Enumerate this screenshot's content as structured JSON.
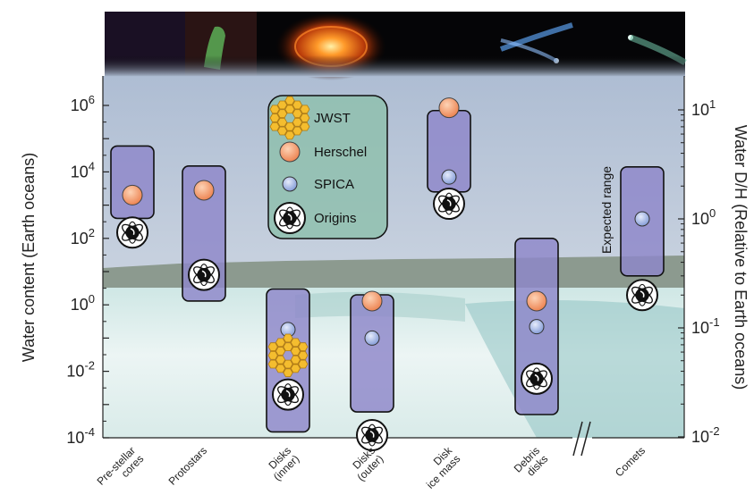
{
  "chart_data": {
    "type": "scatter",
    "y_left": {
      "label": "Water content (Earth oceans)",
      "scale": "log",
      "range": [
        0.0001,
        1000000
      ],
      "ticks": [
        {
          "v": 0.0001,
          "b": "10",
          "e": "-4"
        },
        {
          "v": 0.01,
          "b": "10",
          "e": "-2"
        },
        {
          "v": 1,
          "b": "10",
          "e": "0"
        },
        {
          "v": 100,
          "b": "10",
          "e": "2"
        },
        {
          "v": 10000,
          "b": "10",
          "e": "4"
        },
        {
          "v": 1000000,
          "b": "10",
          "e": "6"
        }
      ]
    },
    "y_right": {
      "label": "Water D/H (Relative to Earth oceans)",
      "scale": "log",
      "range": [
        0.01,
        10
      ],
      "ticks": [
        {
          "v": 0.01,
          "b": "10",
          "e": "-2"
        },
        {
          "v": 0.1,
          "b": "10",
          "e": "-1"
        },
        {
          "v": 1,
          "b": "10",
          "e": "0"
        },
        {
          "v": 10,
          "b": "10",
          "e": "1"
        }
      ]
    },
    "categories": [
      {
        "name": "pre-stellar-cores",
        "lines": [
          "Pre-stellar",
          "cores"
        ],
        "axis": "left",
        "range": [
          400,
          60000
        ],
        "markers": [
          {
            "type": "herschel",
            "value": 2000
          },
          {
            "type": "origins",
            "value": 150
          }
        ]
      },
      {
        "name": "protostars",
        "lines": [
          "Protostars"
        ],
        "axis": "left",
        "range": [
          1.3,
          15000
        ],
        "markers": [
          {
            "type": "herschel",
            "value": 2800
          },
          {
            "type": "origins",
            "value": 8
          }
        ]
      },
      {
        "name": "disks-inner",
        "lines": [
          "Disks",
          "(inner)"
        ],
        "axis": "left",
        "range": [
          0.00015,
          3
        ],
        "markers": [
          {
            "type": "spica",
            "value": 0.18
          },
          {
            "type": "jwst",
            "value": 0.03
          },
          {
            "type": "origins",
            "value": 0.002
          }
        ]
      },
      {
        "name": "disks-outer",
        "lines": [
          "Disks",
          "(outer)"
        ],
        "axis": "left",
        "range": [
          0.0006,
          2
        ],
        "markers": [
          {
            "type": "herschel",
            "value": 1.3
          },
          {
            "type": "spica",
            "value": 0.1
          },
          {
            "type": "origins",
            "value": 0.00012
          }
        ]
      },
      {
        "name": "disk-ice-mass",
        "lines": [
          "Disk",
          "ice mass"
        ],
        "axis": "left",
        "range": [
          2500,
          700000
        ],
        "markers": [
          {
            "type": "herschel",
            "value": 850000
          },
          {
            "type": "spica",
            "value": 7000
          },
          {
            "type": "origins",
            "value": 1100
          }
        ]
      },
      {
        "name": "debris-disks",
        "lines": [
          "Debris",
          "disks"
        ],
        "axis": "left",
        "range": [
          0.0005,
          100
        ],
        "markers": [
          {
            "type": "herschel",
            "value": 1.3
          },
          {
            "type": "spica",
            "value": 0.22
          },
          {
            "type": "origins",
            "value": 0.006
          }
        ]
      },
      {
        "name": "comets",
        "lines": [
          "Comets"
        ],
        "axis": "right",
        "range": [
          0.3,
          3
        ],
        "markers": [
          {
            "type": "spica",
            "value": 1.0
          },
          {
            "type": "origins",
            "value": 0.2
          }
        ]
      }
    ],
    "annotations": {
      "expected_range": "Expected range"
    },
    "legend": {
      "placement": "top-center",
      "entries": [
        {
          "type": "jwst",
          "label": "JWST"
        },
        {
          "type": "herschel",
          "label": "Herschel"
        },
        {
          "type": "spica",
          "label": "SPICA"
        },
        {
          "type": "origins",
          "label": "Origins"
        }
      ]
    },
    "colors": {
      "range_box": "#8d86c9",
      "range_border": "#111111",
      "herschel": "#f08a5d",
      "spica": "#8fa6dd",
      "jwst": "#f0b82a",
      "legend_bg": "#8fbfae"
    }
  }
}
